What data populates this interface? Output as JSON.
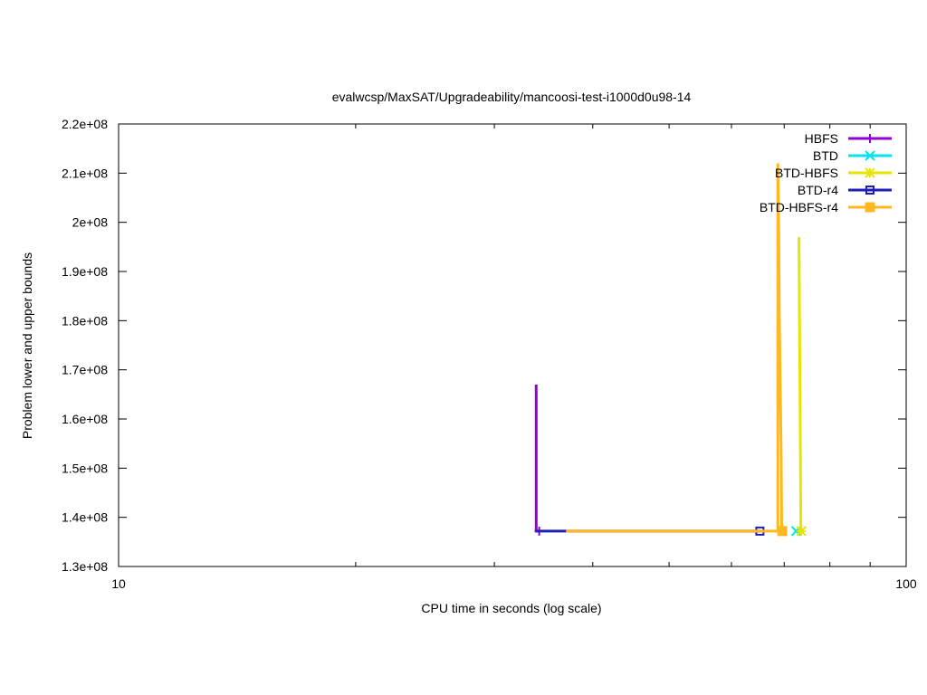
{
  "chart_data": {
    "type": "line",
    "title": "evalwcsp/MaxSAT/Upgradeability/mancoosi-test-i1000d0u98-14",
    "xlabel": "CPU time in seconds (log scale)",
    "ylabel": "Problem lower and upper bounds",
    "x_scale": "log",
    "xlim": [
      10,
      100
    ],
    "ylim": [
      130000000,
      220000000
    ],
    "x_ticks": [
      {
        "value": 10,
        "label": "10"
      },
      {
        "value": 100,
        "label": "100"
      }
    ],
    "y_ticks": [
      {
        "value": 130000000,
        "label": "1.3e+08"
      },
      {
        "value": 140000000,
        "label": "1.4e+08"
      },
      {
        "value": 150000000,
        "label": "1.5e+08"
      },
      {
        "value": 160000000,
        "label": "1.6e+08"
      },
      {
        "value": 170000000,
        "label": "1.7e+08"
      },
      {
        "value": 180000000,
        "label": "1.8e+08"
      },
      {
        "value": 190000000,
        "label": "1.9e+08"
      },
      {
        "value": 200000000,
        "label": "2e+08"
      },
      {
        "value": 210000000,
        "label": "2.1e+08"
      },
      {
        "value": 220000000,
        "label": "2.2e+08"
      }
    ],
    "legend_position": "top-right",
    "grid": false,
    "series": [
      {
        "name": "HBFS",
        "color": "#9400d3",
        "marker": "plus",
        "points": [
          [
            33.9,
            167000000
          ],
          [
            33.9,
            137200000
          ],
          [
            34.2,
            137200000
          ]
        ]
      },
      {
        "name": "BTD",
        "color": "#00e5ee",
        "marker": "cross",
        "points": [
          [
            72.5,
            137200000
          ]
        ]
      },
      {
        "name": "BTD-HBFS",
        "color": "#e5e500",
        "marker": "star",
        "points": [
          [
            73.1,
            197000000
          ],
          [
            73.2,
            182000000
          ],
          [
            73.4,
            152000000
          ],
          [
            73.5,
            137200000
          ],
          [
            73.6,
            137200000
          ]
        ]
      },
      {
        "name": "BTD-r4",
        "color": "#1f1fb8",
        "marker": "open-square",
        "points": [
          [
            33.9,
            137200000
          ],
          [
            37.0,
            137200000
          ],
          [
            65.2,
            137200000
          ]
        ]
      },
      {
        "name": "BTD-HBFS-r4",
        "color": "#ffb81f",
        "marker": "filled-square",
        "points": [
          [
            37.0,
            137200000
          ],
          [
            65.2,
            137200000
          ],
          [
            68.7,
            137200000
          ],
          [
            68.7,
            212000000
          ],
          [
            68.9,
            197000000
          ],
          [
            69.0,
            182000000
          ],
          [
            69.2,
            167000000
          ],
          [
            69.4,
            152000000
          ],
          [
            69.5,
            137200000
          ],
          [
            69.6,
            137200000
          ]
        ]
      }
    ]
  }
}
